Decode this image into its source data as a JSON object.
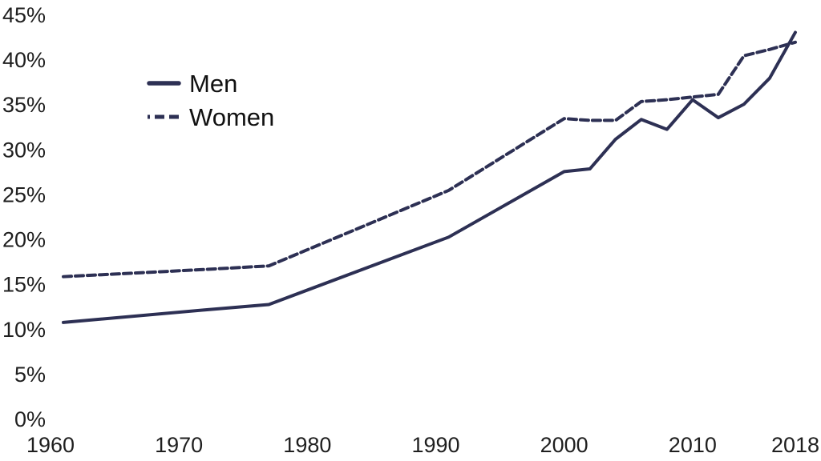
{
  "chart_data": {
    "type": "line",
    "title": "",
    "xlabel": "",
    "ylabel": "",
    "x": [
      1961,
      1972,
      1977,
      1991,
      2000,
      2002,
      2004,
      2006,
      2008,
      2010,
      2012,
      2014,
      2016,
      2018
    ],
    "series": [
      {
        "name": "Men",
        "line_style": "solid",
        "values": [
          10.7,
          12.1,
          12.7,
          20.2,
          27.5,
          27.8,
          31.1,
          33.3,
          32.2,
          35.5,
          33.5,
          35.0,
          37.9,
          43.0
        ]
      },
      {
        "name": "Women",
        "line_style": "dashed",
        "values": [
          15.8,
          16.6,
          17.0,
          25.4,
          33.4,
          33.2,
          33.2,
          35.3,
          35.5,
          35.8,
          36.1,
          40.4,
          41.1,
          41.9
        ]
      }
    ],
    "x_ticks": {
      "values": [
        1960,
        1970,
        1980,
        1990,
        2000,
        2010,
        2018
      ],
      "labels": [
        "1960",
        "1970",
        "1980",
        "1990",
        "2000",
        "2010",
        "2018"
      ]
    },
    "y_ticks": {
      "values": [
        0,
        5,
        10,
        15,
        20,
        25,
        30,
        35,
        40,
        45
      ],
      "labels": [
        "0%",
        "5%",
        "10%",
        "15%",
        "20%",
        "25%",
        "30%",
        "35%",
        "40%",
        "45%"
      ]
    },
    "xlim": [
      1960,
      2019
    ],
    "ylim": [
      0,
      45
    ],
    "grid": false,
    "axis_lines": false,
    "legend_position": "upper-left-inset"
  },
  "colors": {
    "line": "#2d3054",
    "tick_text": "#1f1f1f",
    "legend_text": "#111111",
    "background": "#ffffff"
  }
}
